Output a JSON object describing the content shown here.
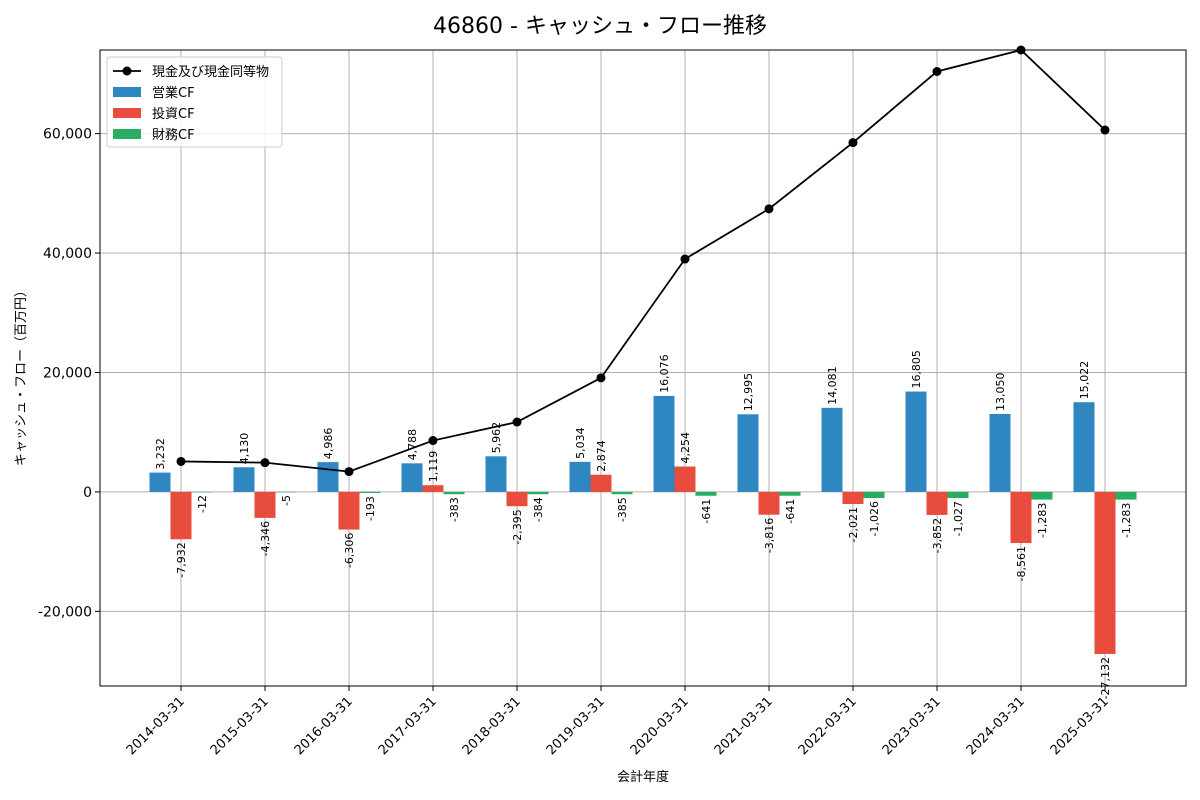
{
  "chart_data": {
    "type": "bar",
    "title": "46860 - キャッシュ・フロー推移",
    "xlabel": "会計年度",
    "ylabel": "キャッシュ・フロー（百万円）",
    "ylim": [
      -32500,
      74000
    ],
    "yticks": [
      -20000,
      0,
      20000,
      40000,
      60000
    ],
    "ytick_labels": [
      "-20,000",
      "0",
      "20,000",
      "40,000",
      "60,000"
    ],
    "grid": true,
    "legend_position": "top-left",
    "categories": [
      "2014-03-31",
      "2015-03-31",
      "2016-03-31",
      "2017-03-31",
      "2018-03-31",
      "2019-03-31",
      "2020-03-31",
      "2021-03-31",
      "2022-03-31",
      "2023-03-31",
      "2024-03-31",
      "2025-03-31"
    ],
    "series": [
      {
        "name": "営業CF",
        "type": "bar",
        "color": "#2e86c1",
        "values": [
          3232,
          4130,
          4986,
          4788,
          5962,
          5034,
          16076,
          12995,
          14081,
          16805,
          13050,
          15022
        ]
      },
      {
        "name": "投資CF",
        "type": "bar",
        "color": "#e74c3c",
        "values": [
          -7932,
          -4346,
          -6306,
          1119,
          -2395,
          2874,
          4254,
          -3816,
          -2021,
          -3852,
          -8561,
          -27132
        ]
      },
      {
        "name": "財務CF",
        "type": "bar",
        "color": "#27ae60",
        "values": [
          -12,
          -5,
          -193,
          -383,
          -384,
          -385,
          -641,
          -641,
          -1026,
          -1027,
          -1283,
          -1283
        ]
      },
      {
        "name": "現金及び現金同等物",
        "type": "line",
        "color": "#000000",
        "values": [
          5100,
          4900,
          3400,
          8600,
          11700,
          19100,
          39000,
          47400,
          58500,
          70400,
          74000,
          60600
        ]
      }
    ],
    "bar_labels": {
      "営業CF": [
        "3,232",
        "4,130",
        "4,986",
        "4,788",
        "5,962",
        "5,034",
        "16,076",
        "12,995",
        "14,081",
        "16,805",
        "13,050",
        "15,022"
      ],
      "投資CF": [
        "-7,932",
        "-4,346",
        "-6,306",
        "1,119",
        "-2,395",
        "2,874",
        "4,254",
        "-3,816",
        "-2,021",
        "-3,852",
        "-8,561",
        "-27,132"
      ],
      "財務CF": [
        "-12",
        "-5",
        "-193",
        "-383",
        "-384",
        "-385",
        "-641",
        "-641",
        "-1,026",
        "-1,027",
        "-1,283",
        "-1,283"
      ]
    },
    "legend": [
      "現金及び現金同等物",
      "営業CF",
      "投資CF",
      "財務CF"
    ]
  }
}
